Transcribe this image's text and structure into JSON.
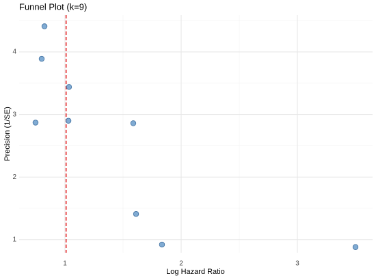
{
  "chart_data": {
    "type": "scatter",
    "title": "Funnel Plot (k=9)",
    "x_label": "Log Hazard Ratio",
    "y_label": "Precision (1/SE)",
    "x": [
      0.824,
      0.8,
      1.035,
      0.747,
      1.03,
      1.588,
      1.612,
      1.835,
      3.5
    ],
    "values": [
      4.41,
      3.89,
      3.44,
      2.87,
      2.9,
      2.86,
      1.41,
      0.92,
      0.88
    ],
    "color": "#6a9ccb",
    "ref_line": 1.01,
    "ref_color": "#e41a1c",
    "xlim": [
      0.606,
      3.647
    ],
    "ylim": [
      0.79,
      4.59
    ],
    "xticks": [
      1,
      2,
      3
    ],
    "yticks": [
      1,
      2,
      3,
      4
    ],
    "xminor": [
      1.5,
      2.5
    ],
    "yminor": [
      1.5,
      2.5,
      3.5,
      4.5
    ],
    "grid": true
  }
}
